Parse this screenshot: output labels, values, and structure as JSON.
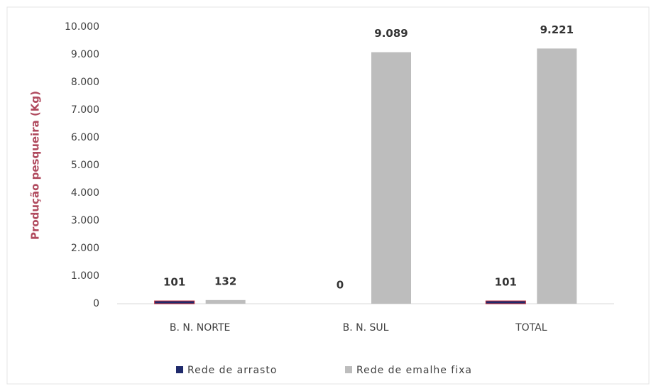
{
  "chart_data": {
    "type": "bar",
    "y_label": "Produção  pesqueira (Kg)",
    "categories": [
      "B. N. NORTE",
      "B. N. SUL",
      "TOTAL"
    ],
    "series": [
      {
        "name": "Rede de arrasto",
        "color": "#1f2a6b",
        "values": [
          101,
          0,
          101
        ]
      },
      {
        "name": "Rede de emalhe fixa",
        "color": "#bdbdbd",
        "values": [
          132,
          9089,
          9221
        ],
        "value_labels": [
          "132",
          "9.089",
          "9.221"
        ]
      }
    ],
    "ylim": [
      0,
      10000
    ],
    "yticks": [
      0,
      {
        "value": 1000,
        "label": "1.000"
      },
      {
        "value": 2000,
        "label": "2.000"
      },
      {
        "value": 3000,
        "label": "3.000"
      },
      {
        "value": 4000,
        "label": "4.000"
      },
      {
        "value": 5000,
        "label": "5.000"
      },
      {
        "value": 6000,
        "label": "6.000"
      },
      {
        "value": 7000,
        "label": "7.000"
      },
      {
        "value": 8000,
        "label": "8.000"
      },
      {
        "value": 9000,
        "label": "9.000"
      },
      {
        "value": 10000,
        "label": "10.000"
      }
    ],
    "grid": false,
    "legend": "bottom"
  }
}
